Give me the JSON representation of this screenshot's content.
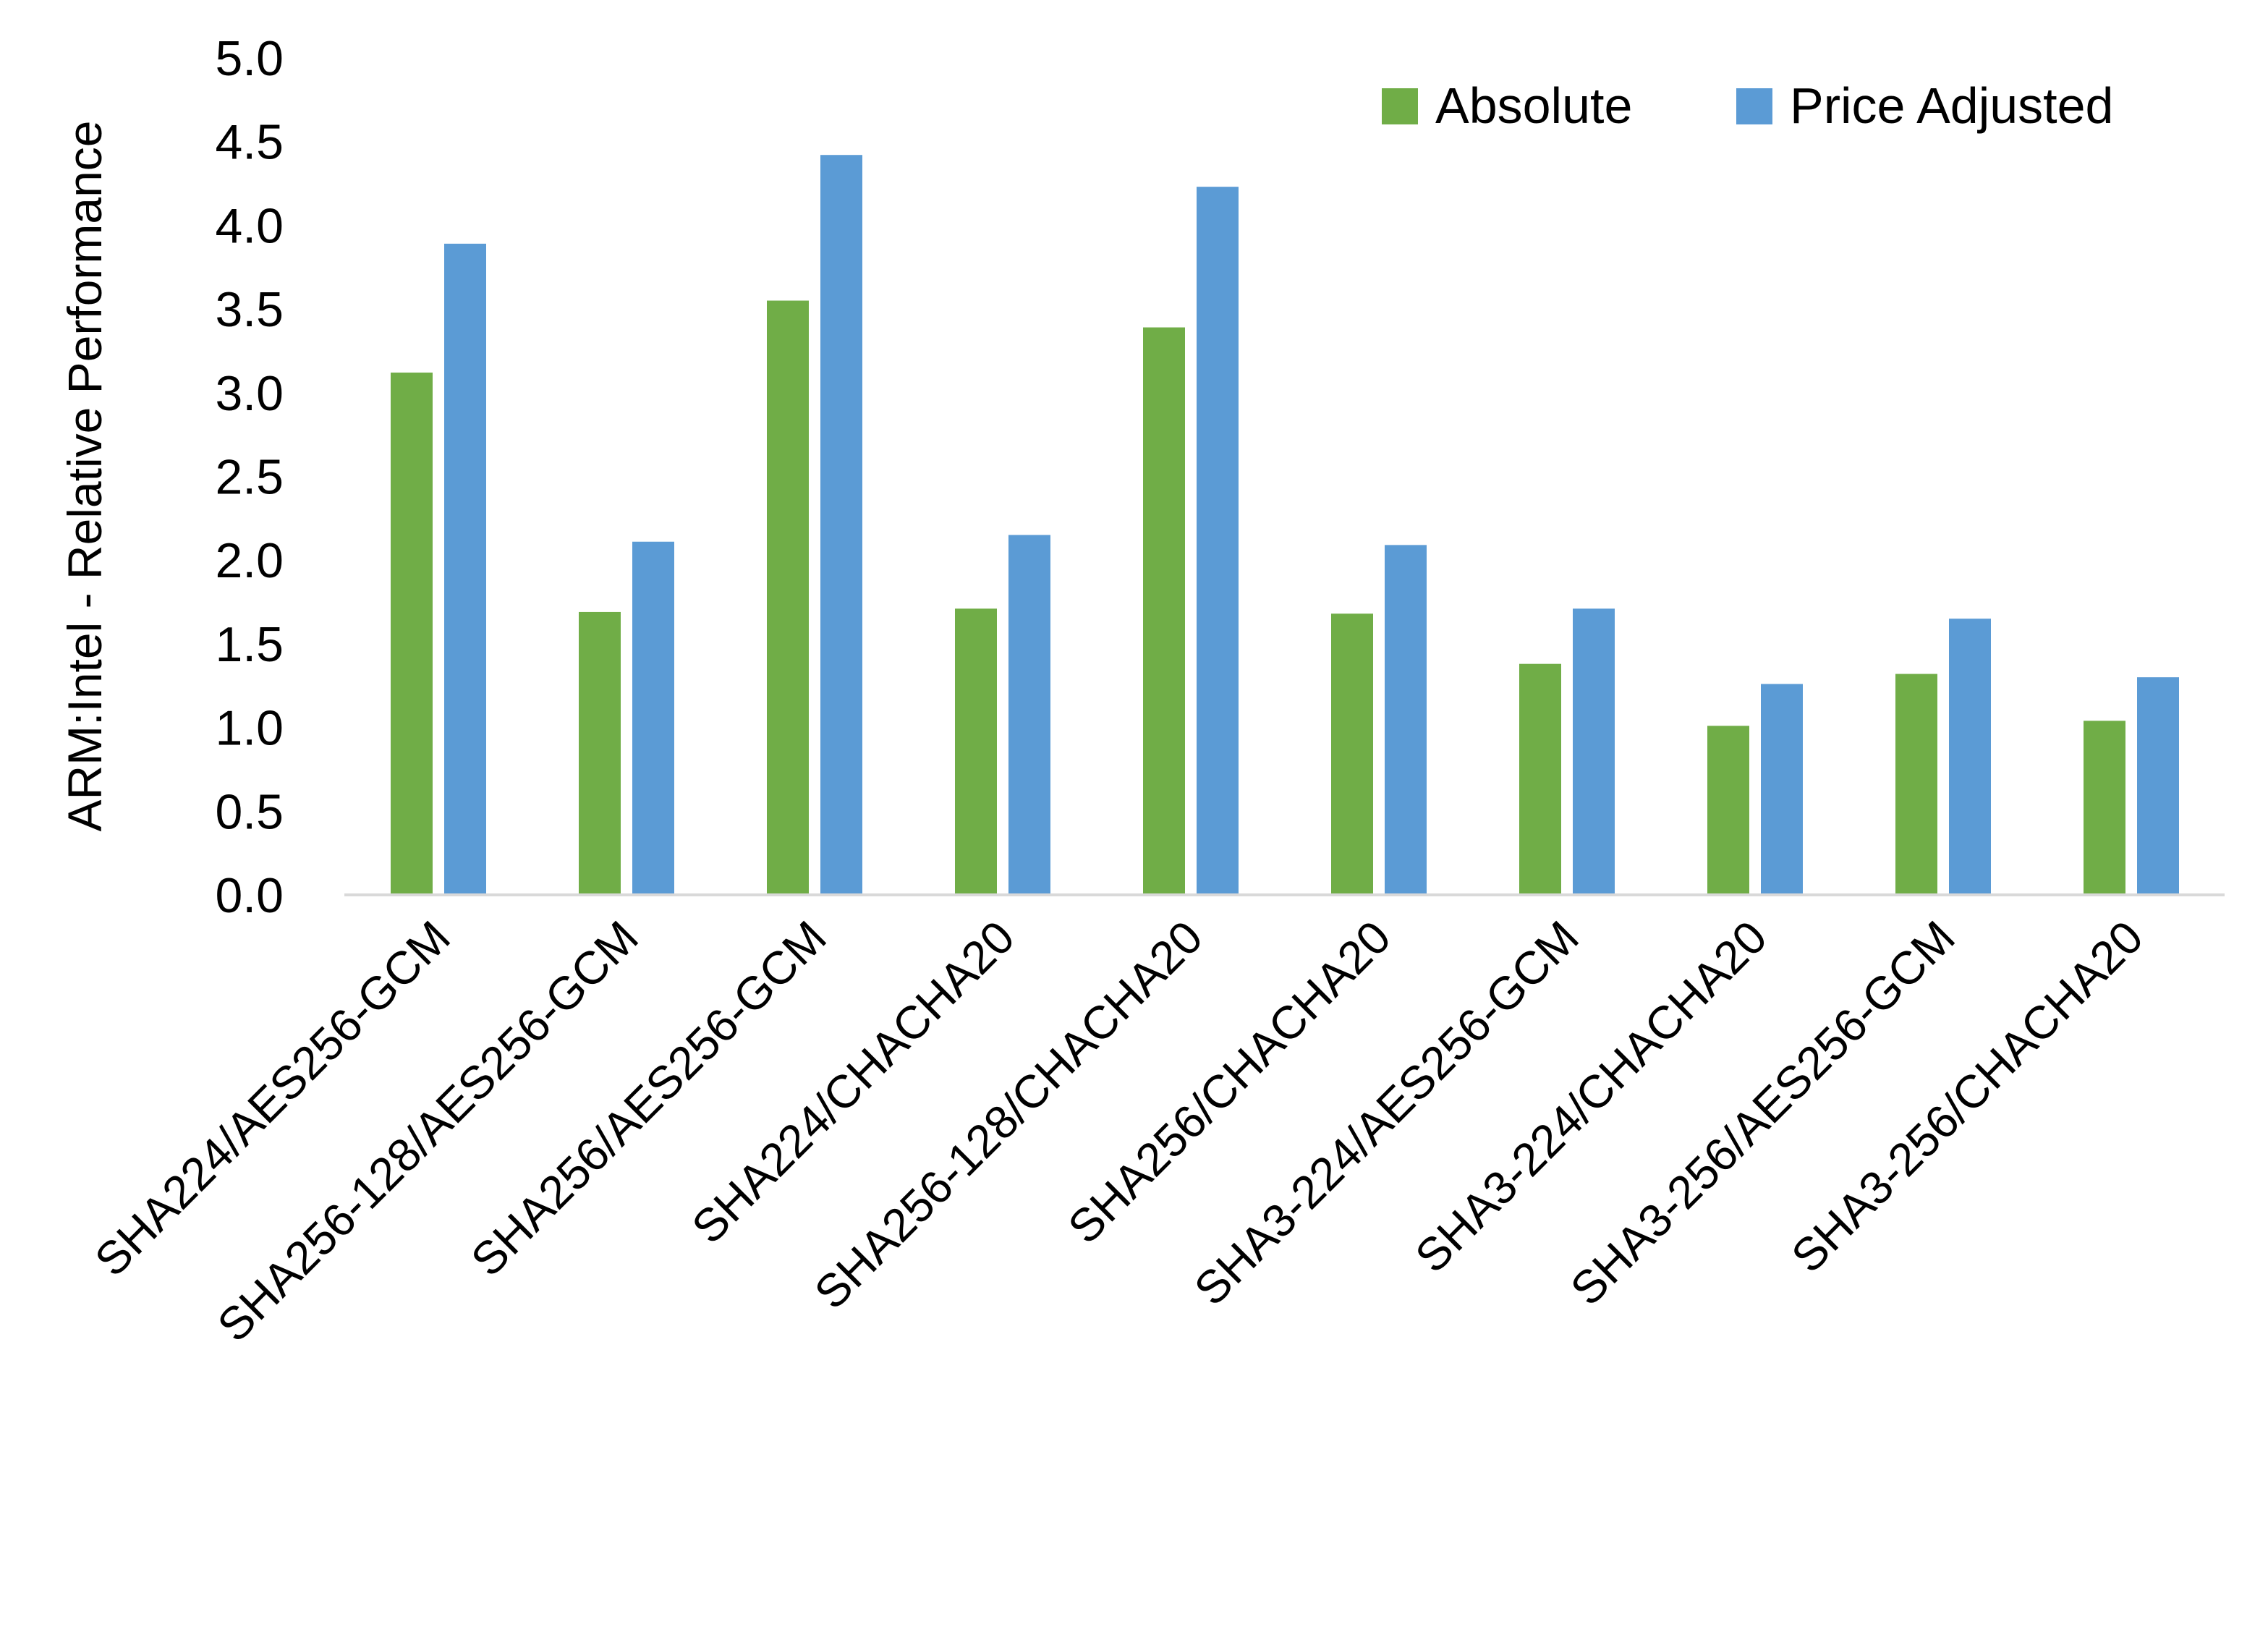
{
  "chart_data": {
    "type": "bar",
    "title": "",
    "xlabel": "",
    "ylabel": "ARM:Intel - Relative Performance",
    "ylim": [
      0,
      5.0
    ],
    "yticks": [
      "0.0",
      "0.5",
      "1.0",
      "1.5",
      "2.0",
      "2.5",
      "3.0",
      "3.5",
      "4.0",
      "4.5",
      "5.0"
    ],
    "grid": false,
    "legend_position": "top-right",
    "categories": [
      "SHA224/AES256-GCM",
      "SHA256-128/AES256-GCM",
      "SHA256/AES256-GCM",
      "SHA224/CHACHA20",
      "SHA256-128/CHACHA20",
      "SHA256/CHACHA20",
      "SHA3-224/AES256-GCM",
      "SHA3-224/CHACHA20",
      "SHA3-256/AES256-GCM",
      "SHA3-256/CHACHA20"
    ],
    "series": [
      {
        "name": "Absolute",
        "color": "#70AD47",
        "values": [
          3.12,
          1.69,
          3.55,
          1.71,
          3.39,
          1.68,
          1.38,
          1.01,
          1.32,
          1.04
        ]
      },
      {
        "name": "Price Adjusted",
        "color": "#5B9BD5",
        "values": [
          3.89,
          2.11,
          4.42,
          2.15,
          4.23,
          2.09,
          1.71,
          1.26,
          1.65,
          1.3
        ]
      }
    ]
  }
}
